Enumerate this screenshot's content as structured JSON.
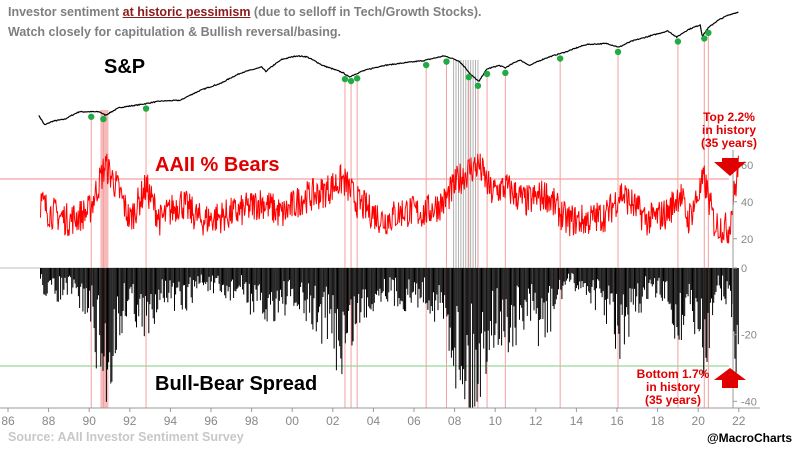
{
  "header": {
    "line1_pre": "Investor sentiment ",
    "line1_em": "at historic pessimism",
    "line1_post": " (due to selloff in Tech/Growth Stocks).",
    "line2": "Watch closely for capitulation & Bullish reversal/basing."
  },
  "labels": {
    "sp": "S&P",
    "bears": "AAII % Bears",
    "spread": "Bull-Bear Spread"
  },
  "annotations": {
    "top": [
      "Top 2.2%",
      "in history",
      "(35 years)"
    ],
    "bottom": [
      "Bottom 1.7%",
      "in history",
      "(35 years)"
    ]
  },
  "footer": {
    "source": "Source: AAII Investor Sentiment Survey",
    "handle": "@MacroCharts"
  },
  "colors": {
    "sp_line": "#000000",
    "bears_line": "#ff0000",
    "spread_bars": "#000000",
    "marker": "#22aa44",
    "event_line": "#f4a0a0",
    "event_band": "#f6b3b3",
    "gray_band": "#b0b0b0",
    "bears_threshold": "#f5a0a0",
    "spread_threshold": "#9bd69b",
    "arrow": "#e00000"
  },
  "chart_data": {
    "type": "line",
    "title": "Investor sentiment at historic pessimism",
    "x_ticks": [
      "86",
      "88",
      "90",
      "92",
      "94",
      "96",
      "98",
      "00",
      "02",
      "04",
      "06",
      "08",
      "10",
      "12",
      "14",
      "16",
      "18",
      "20",
      "22"
    ],
    "x_range": [
      1985.5,
      2022.6
    ],
    "series": [
      {
        "name": "S&P",
        "panel": "top",
        "log_scale": true,
        "x": [
          1987.5,
          1987.8,
          1988.2,
          1988.8,
          1989.5,
          1990.5,
          1990.8,
          1991.5,
          1992.5,
          1993.5,
          1994.5,
          1995.5,
          1996.5,
          1997.5,
          1998.5,
          1998.7,
          1999.5,
          2000.2,
          2000.7,
          2001.5,
          2002.5,
          2002.8,
          2003.5,
          2004.5,
          2005.5,
          2006.5,
          2007.5,
          2008.2,
          2008.8,
          2009.2,
          2009.6,
          2010.2,
          2010.5,
          2011.2,
          2011.7,
          2012.5,
          2013.5,
          2014.5,
          2015.5,
          2016.1,
          2016.7,
          2017.5,
          2018.5,
          2018.95,
          2019.5,
          2020.1,
          2020.2,
          2020.5,
          2021,
          2021.5,
          2022
        ],
        "values": [
          310,
          240,
          265,
          280,
          340,
          340,
          310,
          380,
          410,
          450,
          460,
          600,
          720,
          950,
          1100,
          980,
          1350,
          1480,
          1450,
          1150,
          950,
          850,
          1000,
          1150,
          1230,
          1310,
          1480,
          1300,
          900,
          750,
          1050,
          1150,
          1080,
          1330,
          1150,
          1400,
          1650,
          2000,
          2050,
          1860,
          2170,
          2450,
          2850,
          2420,
          2950,
          3350,
          2450,
          3100,
          3800,
          4350,
          4700
        ]
      },
      {
        "name": "AAII % Bears",
        "panel": "middle",
        "unit": "%",
        "ylim": [
          15,
          68
        ],
        "yticks": [
          20,
          40,
          60
        ],
        "threshold": 53,
        "x": [
          1987.6,
          1988,
          1989,
          1990,
          1990.8,
          1991.5,
          1992,
          1992.8,
          1993.5,
          1994.5,
          1995.5,
          1996.5,
          1997.5,
          1998.5,
          1999.5,
          2000.5,
          2001.5,
          2002.5,
          2003.2,
          2004.5,
          2005.5,
          2006.5,
          2007.5,
          2008.2,
          2008.8,
          2009.2,
          2009.8,
          2010.5,
          2011.5,
          2012.5,
          2013.5,
          2014.5,
          2015.5,
          2016.2,
          2017.5,
          2018.5,
          2019.1,
          2019.5,
          2020.3,
          2020.8,
          2021.5,
          2022
        ],
        "values": [
          40,
          35,
          30,
          35,
          60,
          45,
          30,
          48,
          30,
          40,
          30,
          32,
          35,
          40,
          33,
          42,
          45,
          52,
          40,
          30,
          35,
          34,
          40,
          52,
          58,
          60,
          45,
          48,
          40,
          44,
          30,
          30,
          33,
          45,
          30,
          34,
          45,
          30,
          52,
          28,
          25,
          59.4
        ]
      },
      {
        "name": "Bull-Bear Spread",
        "panel": "bottom",
        "unit": "pts",
        "ylim": [
          -42,
          3
        ],
        "yticks": [
          0,
          -20,
          -40
        ],
        "threshold": -29,
        "x": [
          1987.6,
          1988,
          1989,
          1990,
          1990.8,
          1991.5,
          1992,
          1992.8,
          1993.5,
          1994.5,
          1995.5,
          1996.5,
          1997.5,
          1998.5,
          1999.5,
          2000.5,
          2001.5,
          2002.5,
          2003.2,
          2004.5,
          2005.5,
          2006.5,
          2007.5,
          2008.2,
          2008.8,
          2009.2,
          2009.8,
          2010.5,
          2011.5,
          2012.5,
          2013.5,
          2014.5,
          2015.5,
          2016.2,
          2017.5,
          2018.5,
          2019.1,
          2019.5,
          2020.3,
          2020.8,
          2021.5,
          2022
        ],
        "values": [
          -5,
          -10,
          -8,
          -15,
          -42,
          -20,
          -10,
          -25,
          -8,
          -15,
          -5,
          -10,
          -8,
          -18,
          -12,
          -15,
          -20,
          -30,
          -18,
          -8,
          -12,
          -10,
          -18,
          -35,
          -42,
          -40,
          -20,
          -25,
          -18,
          -22,
          -5,
          -8,
          -15,
          -28,
          -8,
          -12,
          -25,
          -10,
          -35,
          -8,
          -10,
          -38
        ]
      }
    ],
    "event_dates": [
      1990.1,
      1990.7,
      1992.8,
      2002.6,
      2002.9,
      2003.2,
      2006.6,
      2007.6,
      2008.7,
      2009.15,
      2009.6,
      2010.5,
      2013.2,
      2016.05,
      2019.0,
      2020.3,
      2020.5
    ],
    "event_bands": [
      [
        1990.55,
        1990.95
      ]
    ],
    "gray_bands": [
      [
        2007.95,
        2009.2
      ]
    ]
  }
}
